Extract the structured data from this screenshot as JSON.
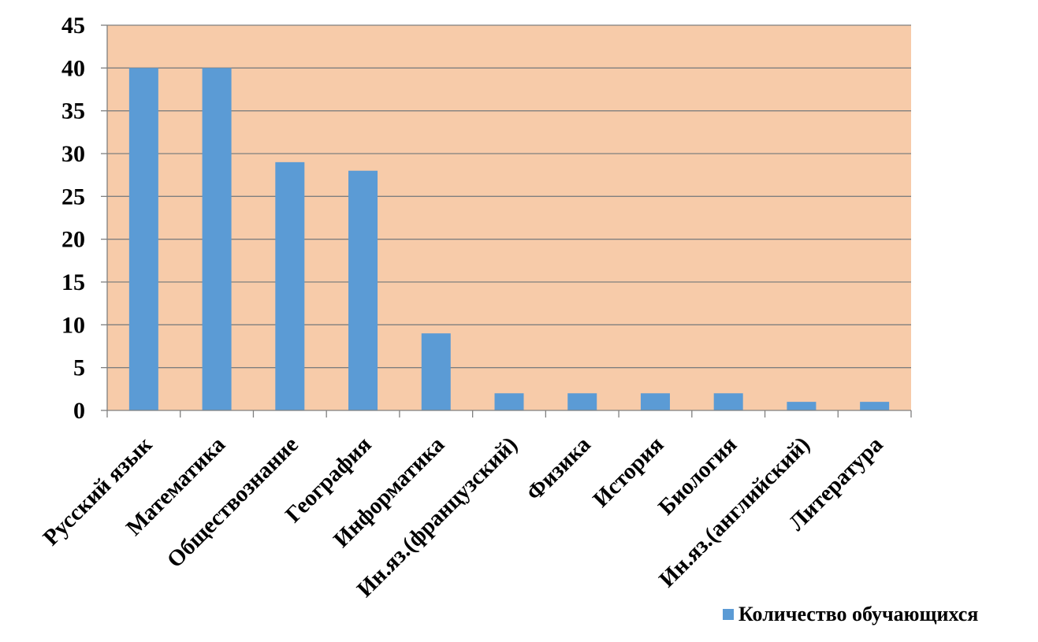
{
  "chart_data": {
    "type": "bar",
    "categories": [
      "Русский язык",
      "Математика",
      "Обществознание",
      "География",
      "Информатика",
      "Ин.яз.(французский)",
      "Физика",
      "История",
      "Биология",
      "Ин.яз.(английский)",
      "Литература"
    ],
    "series": [
      {
        "name": "Количество обучающихся",
        "values": [
          40,
          40,
          29,
          28,
          9,
          2,
          2,
          2,
          2,
          1,
          1
        ]
      }
    ],
    "title": "",
    "xlabel": "",
    "ylabel": "",
    "ylim": [
      0,
      45
    ],
    "yticks": [
      "0",
      "5",
      "10",
      "15",
      "20",
      "25",
      "30",
      "35",
      "40",
      "45"
    ],
    "grid": true,
    "legend": "bottom-right",
    "colors": {
      "bar": "#5b9bd5",
      "plot_background": "#f7cba9",
      "grid": "#7f7f7f"
    }
  }
}
